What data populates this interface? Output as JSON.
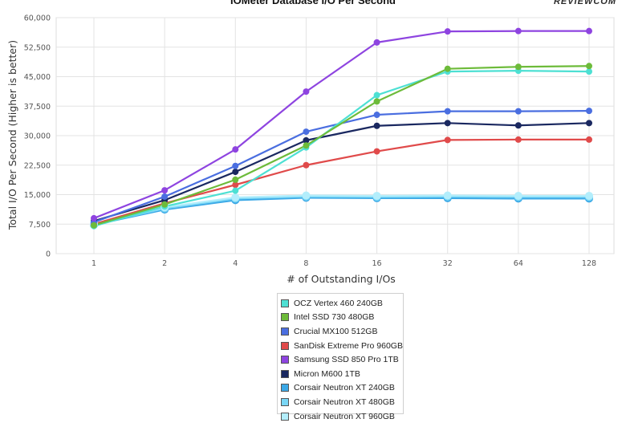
{
  "title": "IOMeter Database I/O Per Second",
  "logo_text": "REVIEWCOM",
  "chart_data": {
    "type": "line",
    "title": "IOMeter Database I/O Per Second",
    "xlabel": "# of Outstanding I/Os",
    "ylabel": "Total I/O Per Second (Higher is better)",
    "categories": [
      "1",
      "2",
      "4",
      "8",
      "16",
      "32",
      "64",
      "128"
    ],
    "ylim": [
      0,
      60000
    ],
    "yticks": [
      "0",
      "7,500",
      "15,000",
      "22,500",
      "30,000",
      "37,500",
      "45,000",
      "52,500",
      "60,000"
    ],
    "ytick_values": [
      0,
      7500,
      15000,
      22500,
      30000,
      37500,
      45000,
      52500,
      60000
    ],
    "grid": true,
    "legend_position": "bottom",
    "series": [
      {
        "name": "OCZ Vertex 460 240GB",
        "color": "#4de0d3",
        "values": [
          7000,
          12000,
          16000,
          27000,
          40300,
          46300,
          46500,
          46300
        ]
      },
      {
        "name": "Intel SSD 730 480GB",
        "color": "#6dbb3a",
        "values": [
          7200,
          12500,
          18800,
          27500,
          38700,
          47000,
          47500,
          47700
        ]
      },
      {
        "name": "Crucial MX100 512GB",
        "color": "#4a6ee0",
        "values": [
          8000,
          14500,
          22300,
          31000,
          35300,
          36200,
          36200,
          36300
        ]
      },
      {
        "name": "SanDisk Extreme Pro 960GB",
        "color": "#e04a4a",
        "values": [
          7500,
          12800,
          17500,
          22500,
          26000,
          28900,
          29000,
          29000
        ]
      },
      {
        "name": "Samsung SSD 850 Pro 1TB",
        "color": "#8e44e0",
        "values": [
          9000,
          16100,
          26500,
          41200,
          53700,
          56500,
          56600,
          56600
        ]
      },
      {
        "name": "Micron M600 1TB",
        "color": "#1a2860",
        "values": [
          8300,
          13600,
          20800,
          28800,
          32500,
          33200,
          32600,
          33200
        ]
      },
      {
        "name": "Corsair Neutron XT 240GB",
        "color": "#3ba8e6",
        "values": [
          7300,
          11200,
          13600,
          14200,
          14100,
          14100,
          14000,
          14000
        ]
      },
      {
        "name": "Corsair Neutron XT 480GB",
        "color": "#79d6f5",
        "values": [
          7400,
          11500,
          14000,
          14500,
          14400,
          14500,
          14400,
          14400
        ]
      },
      {
        "name": "Corsair Neutron XT 960GB",
        "color": "#b3eefc",
        "values": [
          7600,
          11800,
          14300,
          14800,
          14700,
          14800,
          14700,
          14700
        ]
      }
    ]
  }
}
